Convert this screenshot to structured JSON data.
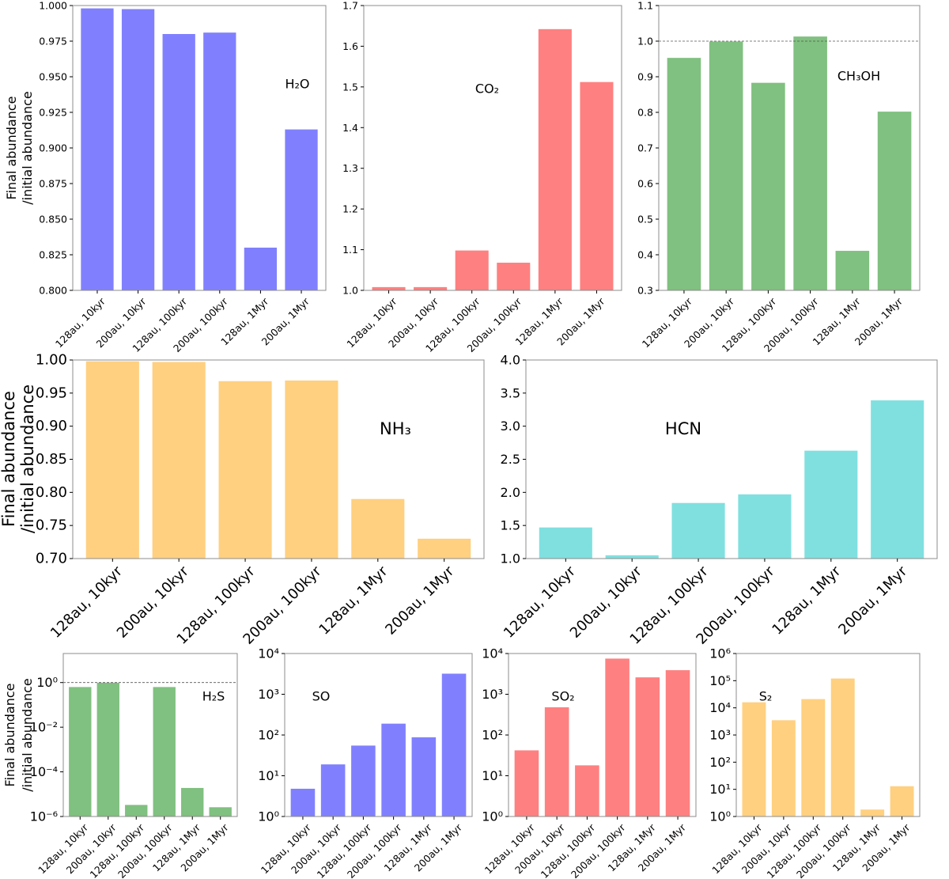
{
  "figure": {
    "ylabel_line1": "Final abundance",
    "ylabel_line2": "/initial abundance"
  },
  "chart_data": [
    {
      "type": "bar",
      "species": "H2O",
      "title": "H₂O",
      "scale": "linear",
      "color": "#8080ff",
      "categories": [
        "128au, 10kyr",
        "200au, 10kyr",
        "128au, 100kyr",
        "200au, 100kyr",
        "128au, 1Myr",
        "200au, 1Myr"
      ],
      "values": [
        0.998,
        0.9975,
        0.98,
        0.981,
        0.83,
        0.913
      ],
      "ylim": [
        0.8,
        1.0
      ],
      "yticks": [
        0.8,
        0.825,
        0.85,
        0.875,
        0.9,
        0.925,
        0.95,
        0.975,
        1.0
      ],
      "ytick_labels": [
        "0.800",
        "0.825",
        "0.850",
        "0.875",
        "0.900",
        "0.925",
        "0.950",
        "0.975",
        "1.000"
      ],
      "reference_line": 1.0,
      "show_ylabel": true
    },
    {
      "type": "bar",
      "species": "CO2",
      "title": "CO₂",
      "scale": "linear",
      "color": "#ff8080",
      "categories": [
        "128au, 10kyr",
        "200au, 10kyr",
        "128au, 100kyr",
        "200au, 100kyr",
        "128au, 1Myr",
        "200au, 1Myr"
      ],
      "values": [
        1.008,
        1.008,
        1.098,
        1.068,
        1.642,
        1.512
      ],
      "ylim": [
        1.0,
        1.7
      ],
      "yticks": [
        1.0,
        1.1,
        1.2,
        1.3,
        1.4,
        1.5,
        1.6,
        1.7
      ],
      "ytick_labels": [
        "1.0",
        "1.1",
        "1.2",
        "1.3",
        "1.4",
        "1.5",
        "1.6",
        "1.7"
      ],
      "reference_line": null,
      "show_ylabel": false
    },
    {
      "type": "bar",
      "species": "CH3OH",
      "title": "CH₃OH",
      "scale": "linear",
      "color": "#80c080",
      "categories": [
        "128au, 10kyr",
        "200au, 10kyr",
        "128au, 100kyr",
        "200au, 100kyr",
        "128au, 1Myr",
        "200au, 1Myr"
      ],
      "values": [
        0.953,
        0.999,
        0.883,
        1.013,
        0.411,
        0.802
      ],
      "ylim": [
        0.3,
        1.1
      ],
      "yticks": [
        0.3,
        0.4,
        0.5,
        0.6,
        0.7,
        0.8,
        0.9,
        1.0,
        1.1
      ],
      "ytick_labels": [
        "0.3",
        "0.4",
        "0.5",
        "0.6",
        "0.7",
        "0.8",
        "0.9",
        "1.0",
        "1.1"
      ],
      "reference_line": 1.0,
      "show_ylabel": false
    },
    {
      "type": "bar",
      "species": "NH3",
      "title": "NH₃",
      "scale": "linear",
      "color": "#ffd080",
      "categories": [
        "128au, 10kyr",
        "200au, 10kyr",
        "128au, 100kyr",
        "200au, 100kyr",
        "128au, 1Myr",
        "200au, 1Myr"
      ],
      "values": [
        0.998,
        0.997,
        0.968,
        0.969,
        0.79,
        0.73
      ],
      "ylim": [
        0.7,
        1.0
      ],
      "yticks": [
        0.7,
        0.75,
        0.8,
        0.85,
        0.9,
        0.95,
        1.0
      ],
      "ytick_labels": [
        "0.70",
        "0.75",
        "0.80",
        "0.85",
        "0.90",
        "0.95",
        "1.00"
      ],
      "reference_line": null,
      "show_ylabel": true
    },
    {
      "type": "bar",
      "species": "HCN",
      "title": "HCN",
      "scale": "linear",
      "color": "#80e0e0",
      "categories": [
        "128au, 10kyr",
        "200au, 10kyr",
        "128au, 100kyr",
        "200au, 100kyr",
        "128au, 1Myr",
        "200au, 1Myr"
      ],
      "values": [
        1.47,
        1.05,
        1.84,
        1.97,
        2.63,
        3.39
      ],
      "ylim": [
        1.0,
        4.0
      ],
      "yticks": [
        1.0,
        1.5,
        2.0,
        2.5,
        3.0,
        3.5,
        4.0
      ],
      "ytick_labels": [
        "1.0",
        "1.5",
        "2.0",
        "2.5",
        "3.0",
        "3.5",
        "4.0"
      ],
      "reference_line": null,
      "show_ylabel": false
    },
    {
      "type": "bar",
      "species": "H2S",
      "title": "H₂S",
      "scale": "log",
      "color": "#80c080",
      "categories": [
        "128au, 10kyr",
        "200au, 10kyr",
        "128au, 100kyr",
        "200au, 100kyr",
        "128au, 1Myr",
        "200au, 1Myr"
      ],
      "values": [
        0.63,
        0.98,
        3.3e-06,
        0.63,
        1.9e-05,
        2.6e-06
      ],
      "ylim": [
        1e-06,
        20
      ],
      "yticks": [
        1e-06,
        0.0001,
        0.01,
        1
      ],
      "ytick_labels": [
        "10⁻⁶",
        "10⁻⁴",
        "10⁻²",
        "10⁰"
      ],
      "reference_line": 1.0,
      "show_ylabel": true
    },
    {
      "type": "bar",
      "species": "SO",
      "title": "SO",
      "scale": "log",
      "color": "#8080ff",
      "categories": [
        "128au, 10kyr",
        "200au, 10kyr",
        "128au, 100kyr",
        "200au, 100kyr",
        "128au, 1Myr",
        "200au, 1Myr"
      ],
      "values": [
        4.8,
        19,
        55,
        190,
        88,
        3200
      ],
      "ylim": [
        1,
        10000
      ],
      "yticks": [
        1,
        10,
        100,
        1000,
        10000
      ],
      "ytick_labels": [
        "10⁰",
        "10¹",
        "10²",
        "10³",
        "10⁴"
      ],
      "reference_line": null,
      "show_ylabel": false
    },
    {
      "type": "bar",
      "species": "SO2",
      "title": "SO₂",
      "scale": "log",
      "color": "#ff8080",
      "categories": [
        "128au, 10kyr",
        "200au, 10kyr",
        "128au, 100kyr",
        "200au, 100kyr",
        "128au, 1Myr",
        "200au, 1Myr"
      ],
      "values": [
        42,
        480,
        18,
        7500,
        2600,
        3900
      ],
      "ylim": [
        1,
        10000
      ],
      "yticks": [
        1,
        10,
        100,
        1000,
        10000
      ],
      "ytick_labels": [
        "10⁰",
        "10¹",
        "10²",
        "10³",
        "10⁴"
      ],
      "reference_line": null,
      "show_ylabel": false
    },
    {
      "type": "bar",
      "species": "S2",
      "title": "S₂",
      "scale": "log",
      "color": "#ffd080",
      "categories": [
        "128au, 10kyr",
        "200au, 10kyr",
        "128au, 100kyr",
        "200au, 100kyr",
        "128au, 1Myr",
        "200au, 1Myr"
      ],
      "values": [
        16000,
        3500,
        21000,
        120000,
        1.8,
        13
      ],
      "ylim": [
        1,
        1000000
      ],
      "yticks": [
        1,
        10,
        100,
        1000,
        10000,
        100000,
        1000000
      ],
      "ytick_labels": [
        "10⁰",
        "10¹",
        "10²",
        "10³",
        "10⁴",
        "10⁵",
        "10⁶"
      ],
      "reference_line": null,
      "show_ylabel": false
    }
  ]
}
